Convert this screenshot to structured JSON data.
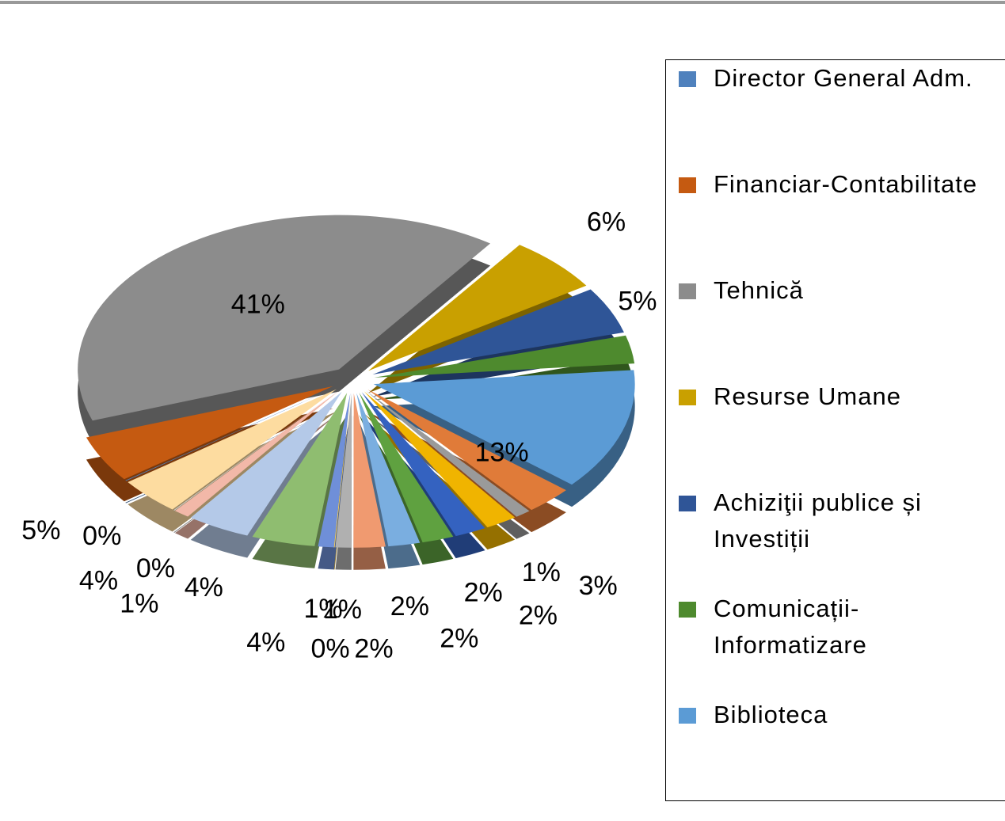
{
  "chart_data": {
    "type": "pie",
    "categories": [
      "Director General Adm.",
      "Financiar-Contabilitate",
      "Tehnică",
      "Resurse Umane",
      "Achiziţii publice și Investiții",
      "Comunicații-Informatizare",
      "Biblioteca",
      null,
      null,
      null,
      null,
      null,
      null,
      null,
      null,
      null,
      null,
      null,
      null,
      null,
      null,
      null
    ],
    "values": [
      0,
      5,
      41,
      6,
      5,
      3,
      13,
      3,
      1,
      2,
      2,
      2,
      2,
      2,
      1,
      0,
      1,
      4,
      4,
      1,
      0,
      4
    ],
    "value_labels": [
      "0%",
      "5%",
      "41%",
      "6%",
      "5%",
      "3%",
      "13%",
      "3%",
      "1%",
      "2%",
      "2%",
      "2%",
      "2%",
      "2%",
      "1%",
      "0%",
      "1%",
      "4%",
      "4%",
      "1%",
      "0%",
      "4%"
    ],
    "colors": [
      "#4f81bd",
      "#c55a11",
      "#8c8c8c",
      "#c9a000",
      "#2f5597",
      "#4e8a2e",
      "#5b9bd5",
      "#e07b39",
      "#9a9a9a",
      "#f0b400",
      "#3462c0",
      "#5fa140",
      "#7aaee0",
      "#f09a70",
      "#b0b0b0",
      "#ffd24d",
      "#6f8fd8",
      "#8fbd70",
      "#b4c9e8",
      "#f2b8a8",
      "#d0d0d0",
      "#fddca0"
    ],
    "legend": "right"
  }
}
